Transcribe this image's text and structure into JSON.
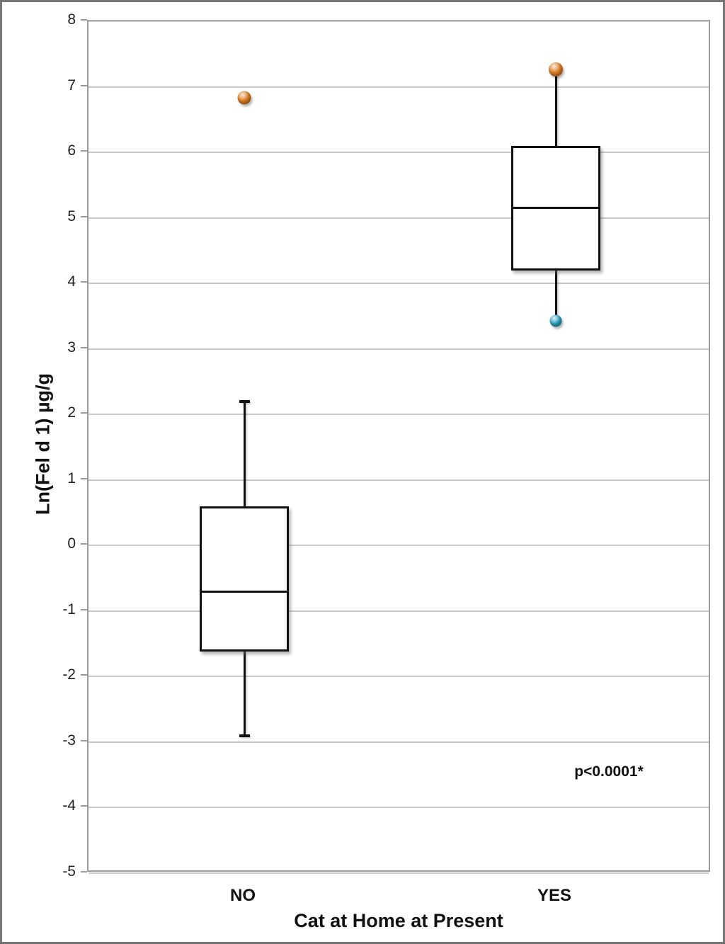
{
  "colors": {
    "orange_marker": "#E07E24",
    "teal_marker": "#2FA7C4",
    "box_line": "#111111",
    "gridline": "#C9C9C9",
    "plot_border": "#9A9A9A"
  },
  "chart_data": {
    "type": "box",
    "title": "",
    "xlabel": "Cat at Home at Present",
    "ylabel": "Ln(Fel d 1) µg/g",
    "ylim": [
      -5,
      8
    ],
    "ytick_step": 1,
    "grid": true,
    "legend": null,
    "categories": [
      "NO",
      "YES"
    ],
    "series": [
      {
        "category": "NO",
        "whisker_low": -2.9,
        "q1": -1.62,
        "median": -0.7,
        "q3": 0.6,
        "whisker_high": 2.2,
        "cap_low": true,
        "cap_high": true,
        "points": [
          {
            "value": 6.83,
            "color": "#E07E24",
            "size": 19
          }
        ]
      },
      {
        "category": "YES",
        "whisker_low": 3.43,
        "q1": 4.2,
        "median": 5.15,
        "q3": 6.1,
        "whisker_high": 7.27,
        "cap_low": false,
        "cap_high": false,
        "points": [
          {
            "value": 7.27,
            "color": "#E07E24",
            "size": 20
          },
          {
            "value": 3.43,
            "color": "#2FA7C4",
            "size": 17
          }
        ]
      }
    ],
    "annotation": {
      "text": "p<0.0001*"
    }
  }
}
